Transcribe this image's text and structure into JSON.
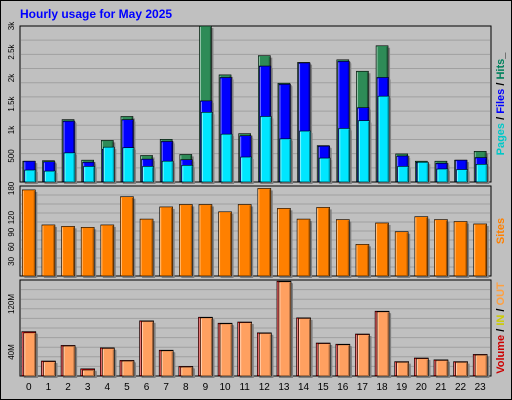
{
  "title": "Hourly usage for May 2025",
  "chart_data": [
    {
      "type": "bar",
      "panel": "pages-files-hits",
      "categories": [
        "0",
        "1",
        "2",
        "3",
        "4",
        "5",
        "6",
        "7",
        "8",
        "9",
        "10",
        "11",
        "12",
        "13",
        "14",
        "15",
        "16",
        "17",
        "18",
        "19",
        "20",
        "21",
        "22",
        "23"
      ],
      "ylim": [
        0,
        3000
      ],
      "y_ticks": [
        "500",
        "1k",
        "1.5k",
        "2k",
        "2.5k",
        "3k"
      ],
      "axis_label_parts": [
        {
          "text": "Pages",
          "color": "#00c8c8"
        },
        {
          "text": " / ",
          "color": "#000000"
        },
        {
          "text": "Files",
          "color": "#0000ff"
        },
        {
          "text": " / ",
          "color": "#000000"
        },
        {
          "text": "Hits",
          "color": "#00805c"
        },
        {
          "text": "_",
          "color": "#000000"
        }
      ],
      "series": [
        {
          "name": "Hits",
          "color": "#2e8b57",
          "values": [
            400,
            410,
            1200,
            420,
            800,
            1260,
            510,
            820,
            530,
            3000,
            2060,
            930,
            2430,
            1900,
            2300,
            700,
            2350,
            2130,
            2620,
            540,
            400,
            400,
            420,
            590
          ]
        },
        {
          "name": "Files",
          "color": "#0000ff",
          "values": [
            400,
            390,
            1170,
            380,
            630,
            1200,
            440,
            780,
            430,
            1560,
            2010,
            890,
            2230,
            1880,
            2290,
            690,
            2320,
            1430,
            2010,
            500,
            380,
            360,
            420,
            470
          ]
        },
        {
          "name": "Pages",
          "color": "#00e6ff",
          "values": [
            230,
            210,
            560,
            300,
            670,
            660,
            300,
            400,
            320,
            1340,
            920,
            480,
            1260,
            830,
            980,
            460,
            1030,
            1180,
            1650,
            300,
            380,
            250,
            240,
            340
          ]
        }
      ]
    },
    {
      "type": "bar",
      "panel": "sites",
      "categories": [
        "0",
        "1",
        "2",
        "3",
        "4",
        "5",
        "6",
        "7",
        "8",
        "9",
        "10",
        "11",
        "12",
        "13",
        "14",
        "15",
        "16",
        "17",
        "18",
        "19",
        "20",
        "21",
        "22",
        "23"
      ],
      "ylim": [
        0,
        185
      ],
      "y_ticks": [
        "30",
        "60",
        "90",
        "120",
        "180"
      ],
      "axis_label": "Sites",
      "series": [
        {
          "name": "Sites",
          "color": "#ff8000",
          "values": [
            177,
            105,
            102,
            100,
            105,
            163,
            117,
            142,
            147,
            147,
            132,
            147,
            180,
            139,
            117,
            141,
            116,
            65,
            109,
            91,
            122,
            116,
            112,
            107
          ]
        }
      ]
    },
    {
      "type": "bar",
      "panel": "volume",
      "categories": [
        "0",
        "1",
        "2",
        "3",
        "4",
        "5",
        "6",
        "7",
        "8",
        "9",
        "10",
        "11",
        "12",
        "13",
        "14",
        "15",
        "16",
        "17",
        "18",
        "19",
        "20",
        "21",
        "22",
        "23"
      ],
      "ylim": [
        0,
        160
      ],
      "y_ticks": [
        "40M",
        "120M"
      ],
      "axis_label_parts": [
        {
          "text": "Volume",
          "color": "#cc0000"
        },
        {
          "text": " / ",
          "color": "#000000"
        },
        {
          "text": "IN",
          "color": "#cccc00"
        },
        {
          "text": " / ",
          "color": "#000000"
        },
        {
          "text": "OUT",
          "color": "#ffa040"
        }
      ],
      "series": [
        {
          "name": "Volume",
          "color": "#cc0000",
          "values": [
            74,
            25,
            51,
            12,
            47,
            26,
            92,
            43,
            16,
            98,
            88,
            90,
            72,
            158,
            97,
            55,
            53,
            70,
            108,
            24,
            30,
            27,
            24,
            36
          ]
        },
        {
          "name": "OUT",
          "color": "#ffa060",
          "values": [
            72,
            24,
            50,
            10,
            46,
            25,
            91,
            42,
            15,
            97,
            87,
            89,
            71,
            157,
            96,
            54,
            52,
            69,
            107,
            23,
            29,
            26,
            23,
            35
          ]
        }
      ]
    }
  ]
}
